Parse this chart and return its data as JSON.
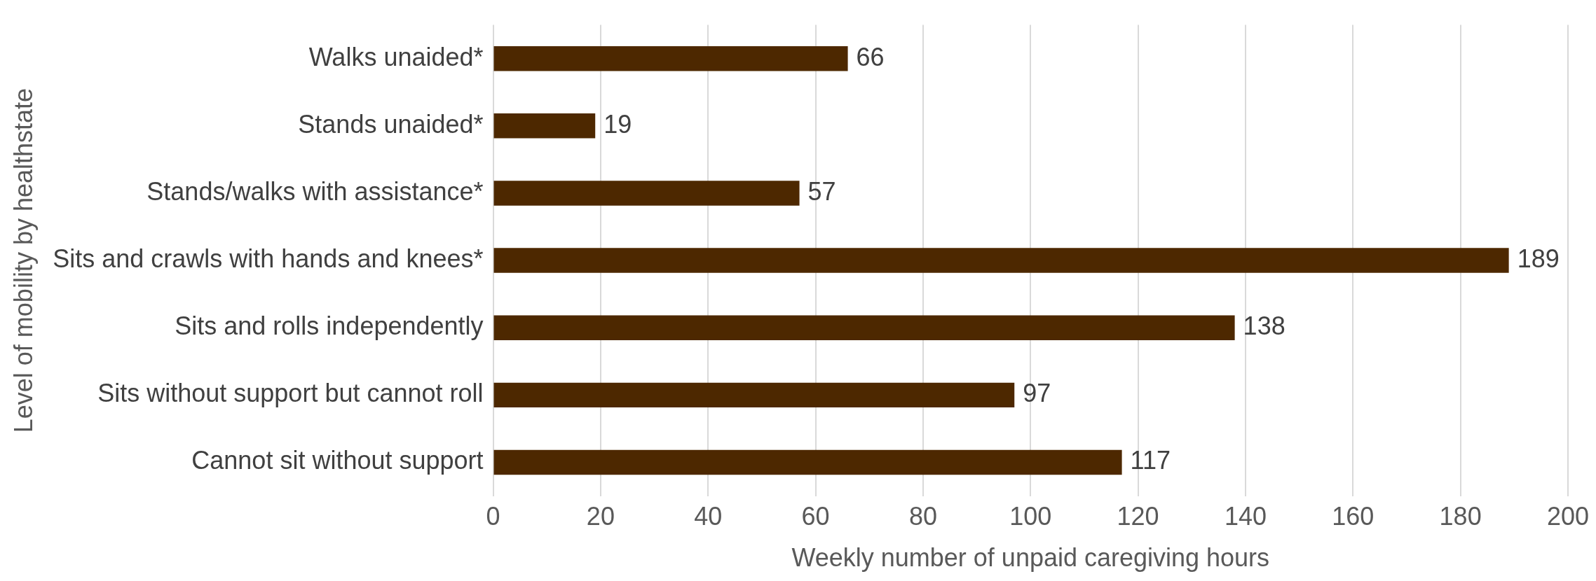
{
  "chart_data": {
    "type": "bar",
    "orientation": "horizontal",
    "xlabel": "Weekly number of unpaid caregiving hours",
    "ylabel": "Level of mobility by healthstate",
    "categories": [
      "Walks unaided*",
      "Stands unaided*",
      "Stands/walks with assistance*",
      "Sits and crawls with hands and knees*",
      "Sits and rolls independently",
      "Sits without support but cannot roll",
      "Cannot sit without support"
    ],
    "values": [
      66,
      19,
      57,
      189,
      138,
      97,
      117
    ],
    "color": "#4d2800",
    "xlim": [
      0,
      200
    ],
    "xticks": [
      0,
      20,
      40,
      60,
      80,
      100,
      120,
      140,
      160,
      180,
      200
    ],
    "grid": "x",
    "data_labels": true,
    "legend": false
  }
}
